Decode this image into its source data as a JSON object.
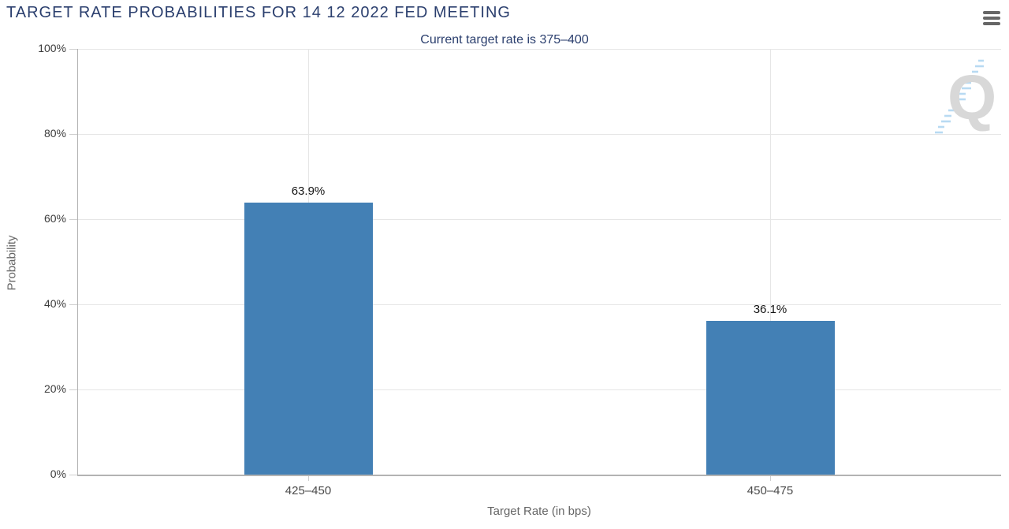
{
  "header": {
    "menu": {
      "icon": "hamburger-icon",
      "color": "#666666"
    }
  },
  "chart_data": {
    "type": "bar",
    "title": "TARGET RATE PROBABILITIES FOR 14 12 2022 FED MEETING",
    "subtitle": "Current target rate is 375–400",
    "categories": [
      "425–450",
      "450–475"
    ],
    "values": [
      63.9,
      36.1
    ],
    "value_labels": [
      "63.9%",
      "36.1%"
    ],
    "xlabel": "Target Rate (in bps)",
    "ylabel": "Probability",
    "ylim": [
      0,
      100
    ],
    "yticks": [
      "0%",
      "20%",
      "40%",
      "60%",
      "80%",
      "100%"
    ],
    "grid": true,
    "legend": "none",
    "watermark_letter": "Q",
    "colors": {
      "bar": "#4380b5",
      "title": "#2b3f6e",
      "subtitle": "#2b3f6e",
      "grid": "#e6e6e6",
      "axis": "#b3b3b3",
      "tick": "#cfcfcf",
      "ytick_label": "#3c3c3c",
      "xtick_label": "#4a4a4a",
      "axis_title": "#666666",
      "value_label": "#141414",
      "watermark_q": "#d6d6d6",
      "watermark_dash": "#b5d9f2"
    }
  }
}
